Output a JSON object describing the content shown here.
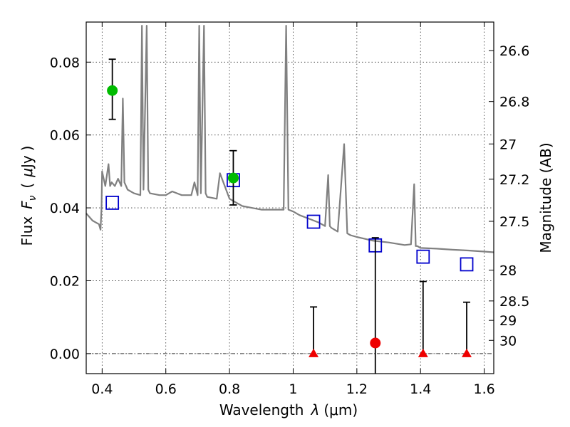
{
  "chart_data": {
    "type": "scatter",
    "xlabel_prefix": "Wavelength",
    "xlabel_symbol": "λ",
    "xlabel_unit": "(μm)",
    "ylabel_prefix": "Flux",
    "ylabel_symbol": "F",
    "ylabel_subscript": "ν",
    "ylabel_unit_open": "(",
    "ylabel_unit_mu": "μ",
    "ylabel_unit_rest": "Jy",
    "ylabel_unit_close": ")",
    "ylabel_right": "Magnitude (AB)",
    "xlim": [
      0.35,
      1.63
    ],
    "ylim": [
      -0.0055,
      0.091
    ],
    "grid": true,
    "x_ticks": [
      {
        "value": 0.4,
        "label": "0.4"
      },
      {
        "value": 0.6,
        "label": "0.6"
      },
      {
        "value": 0.8,
        "label": "0.8"
      },
      {
        "value": 1.0,
        "label": "1"
      },
      {
        "value": 1.2,
        "label": "1.2"
      },
      {
        "value": 1.4,
        "label": "1.4"
      },
      {
        "value": 1.6,
        "label": "1.6"
      }
    ],
    "y_ticks": [
      {
        "value": 0.0,
        "label": "0.00"
      },
      {
        "value": 0.02,
        "label": "0.02"
      },
      {
        "value": 0.04,
        "label": "0.04"
      },
      {
        "value": 0.06,
        "label": "0.06"
      },
      {
        "value": 0.08,
        "label": "0.08"
      }
    ],
    "mag_ticks": [
      {
        "label": "26.6"
      },
      {
        "label": "26.8"
      },
      {
        "label": "27"
      },
      {
        "label": "27.2"
      },
      {
        "label": "27.5"
      },
      {
        "label": "28"
      },
      {
        "label": "28.5"
      },
      {
        "label": "29"
      },
      {
        "label": "30"
      }
    ],
    "model_spectrum": {
      "color": "#808080",
      "x": [
        0.35,
        0.37,
        0.39,
        0.395,
        0.398,
        0.4,
        0.41,
        0.42,
        0.425,
        0.43,
        0.44,
        0.45,
        0.46,
        0.465,
        0.47,
        0.48,
        0.5,
        0.52,
        0.525,
        0.53,
        0.54,
        0.545,
        0.55,
        0.58,
        0.6,
        0.62,
        0.65,
        0.68,
        0.69,
        0.7,
        0.705,
        0.71,
        0.72,
        0.725,
        0.73,
        0.76,
        0.77,
        0.8,
        0.82,
        0.84,
        0.87,
        0.9,
        0.95,
        0.97,
        0.978,
        0.985,
        1.0,
        1.02,
        1.05,
        1.08,
        1.1,
        1.11,
        1.115,
        1.12,
        1.14,
        1.16,
        1.17,
        1.18,
        1.2,
        1.25,
        1.3,
        1.35,
        1.37,
        1.38,
        1.385,
        1.39,
        1.4,
        1.45,
        1.5,
        1.55,
        1.6,
        1.63
      ],
      "y": [
        0.0385,
        0.0365,
        0.0355,
        0.034,
        0.04,
        0.05,
        0.046,
        0.052,
        0.046,
        0.047,
        0.046,
        0.048,
        0.046,
        0.07,
        0.047,
        0.045,
        0.044,
        0.0435,
        0.09,
        0.045,
        0.09,
        0.045,
        0.044,
        0.0435,
        0.0435,
        0.0445,
        0.0435,
        0.0435,
        0.047,
        0.0435,
        0.09,
        0.044,
        0.09,
        0.044,
        0.043,
        0.0425,
        0.0495,
        0.0425,
        0.0415,
        0.0405,
        0.04,
        0.0395,
        0.0395,
        0.0395,
        0.09,
        0.0395,
        0.039,
        0.038,
        0.037,
        0.036,
        0.035,
        0.049,
        0.035,
        0.0345,
        0.0335,
        0.0575,
        0.033,
        0.0325,
        0.032,
        0.031,
        0.0305,
        0.0298,
        0.03,
        0.0465,
        0.0295,
        0.0295,
        0.029,
        0.0288,
        0.0285,
        0.0283,
        0.028,
        0.0278
      ]
    },
    "open_squares": {
      "color": "#0000cc",
      "x": [
        0.432,
        0.812,
        1.064,
        1.258,
        1.408,
        1.545
      ],
      "y": [
        0.0414,
        0.0476,
        0.0362,
        0.0297,
        0.0266,
        0.0245
      ]
    },
    "detections": {
      "color": "#00bb00",
      "x": [
        0.432,
        0.812
      ],
      "y": [
        0.0722,
        0.0482
      ],
      "err_low": [
        0.0643,
        0.0408
      ],
      "err_high": [
        0.0808,
        0.0557
      ]
    },
    "upper_limits": {
      "color": "#ee0000",
      "x": [
        1.064,
        1.408,
        1.545
      ],
      "y": [
        0.0,
        0.0,
        0.0
      ],
      "err_high": [
        0.0128,
        0.0198,
        0.0141
      ]
    },
    "weak_point": {
      "color": "#ee0000",
      "x": 1.258,
      "y": 0.0029,
      "err_low": -0.0055,
      "err_high": 0.0318
    }
  }
}
